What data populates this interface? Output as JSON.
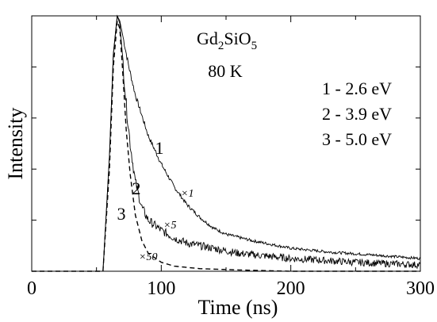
{
  "chart_data": {
    "type": "line",
    "xlabel": "Time (ns)",
    "ylabel": "Intensity",
    "xlim": [
      0,
      300
    ],
    "ylim": [
      0,
      1.0
    ],
    "x_ticks": [
      "0",
      "100",
      "200",
      "300"
    ],
    "grid": false,
    "title_parts": {
      "gd": "Gd",
      "sub1": "2",
      "si": "SiO",
      "sub2": "5"
    },
    "temperature": "80 K",
    "legend_lines": [
      "1 - 2.6 eV",
      "2 - 3.9 eV",
      "3 - 5.0 eV"
    ],
    "series": [
      {
        "curve_label": "1",
        "multiplier": "×1",
        "style": "solid",
        "noise": 0.008,
        "x": [
          0,
          55,
          60,
          63,
          66,
          68,
          70,
          75,
          80,
          90,
          100,
          110,
          120,
          130,
          140,
          150,
          170,
          200,
          230,
          260,
          300
        ],
        "y": [
          0,
          0,
          0.45,
          0.85,
          1.0,
          0.98,
          0.93,
          0.8,
          0.69,
          0.53,
          0.42,
          0.33,
          0.26,
          0.21,
          0.17,
          0.145,
          0.12,
          0.09,
          0.075,
          0.065,
          0.05
        ]
      },
      {
        "curve_label": "2",
        "multiplier": "×5",
        "style": "solid",
        "noise": 0.022,
        "x": [
          0,
          55,
          60,
          63,
          66,
          68,
          70,
          73,
          76,
          80,
          85,
          90,
          100,
          110,
          120,
          140,
          160,
          200,
          250,
          300
        ],
        "y": [
          0,
          0,
          0.45,
          0.85,
          1.0,
          0.97,
          0.85,
          0.65,
          0.5,
          0.35,
          0.25,
          0.2,
          0.16,
          0.13,
          0.11,
          0.09,
          0.07,
          0.05,
          0.035,
          0.025
        ]
      },
      {
        "curve_label": "3",
        "multiplier": "×50",
        "style": "dashed",
        "noise": 0,
        "x": [
          0,
          55,
          60,
          63,
          66,
          68,
          70,
          73,
          76,
          80,
          85,
          90,
          100,
          110,
          130,
          160,
          200,
          300
        ],
        "y": [
          0,
          0,
          0.4,
          0.8,
          0.98,
          0.95,
          0.8,
          0.55,
          0.38,
          0.22,
          0.12,
          0.07,
          0.035,
          0.02,
          0.01,
          0.005,
          0,
          0
        ]
      }
    ]
  }
}
